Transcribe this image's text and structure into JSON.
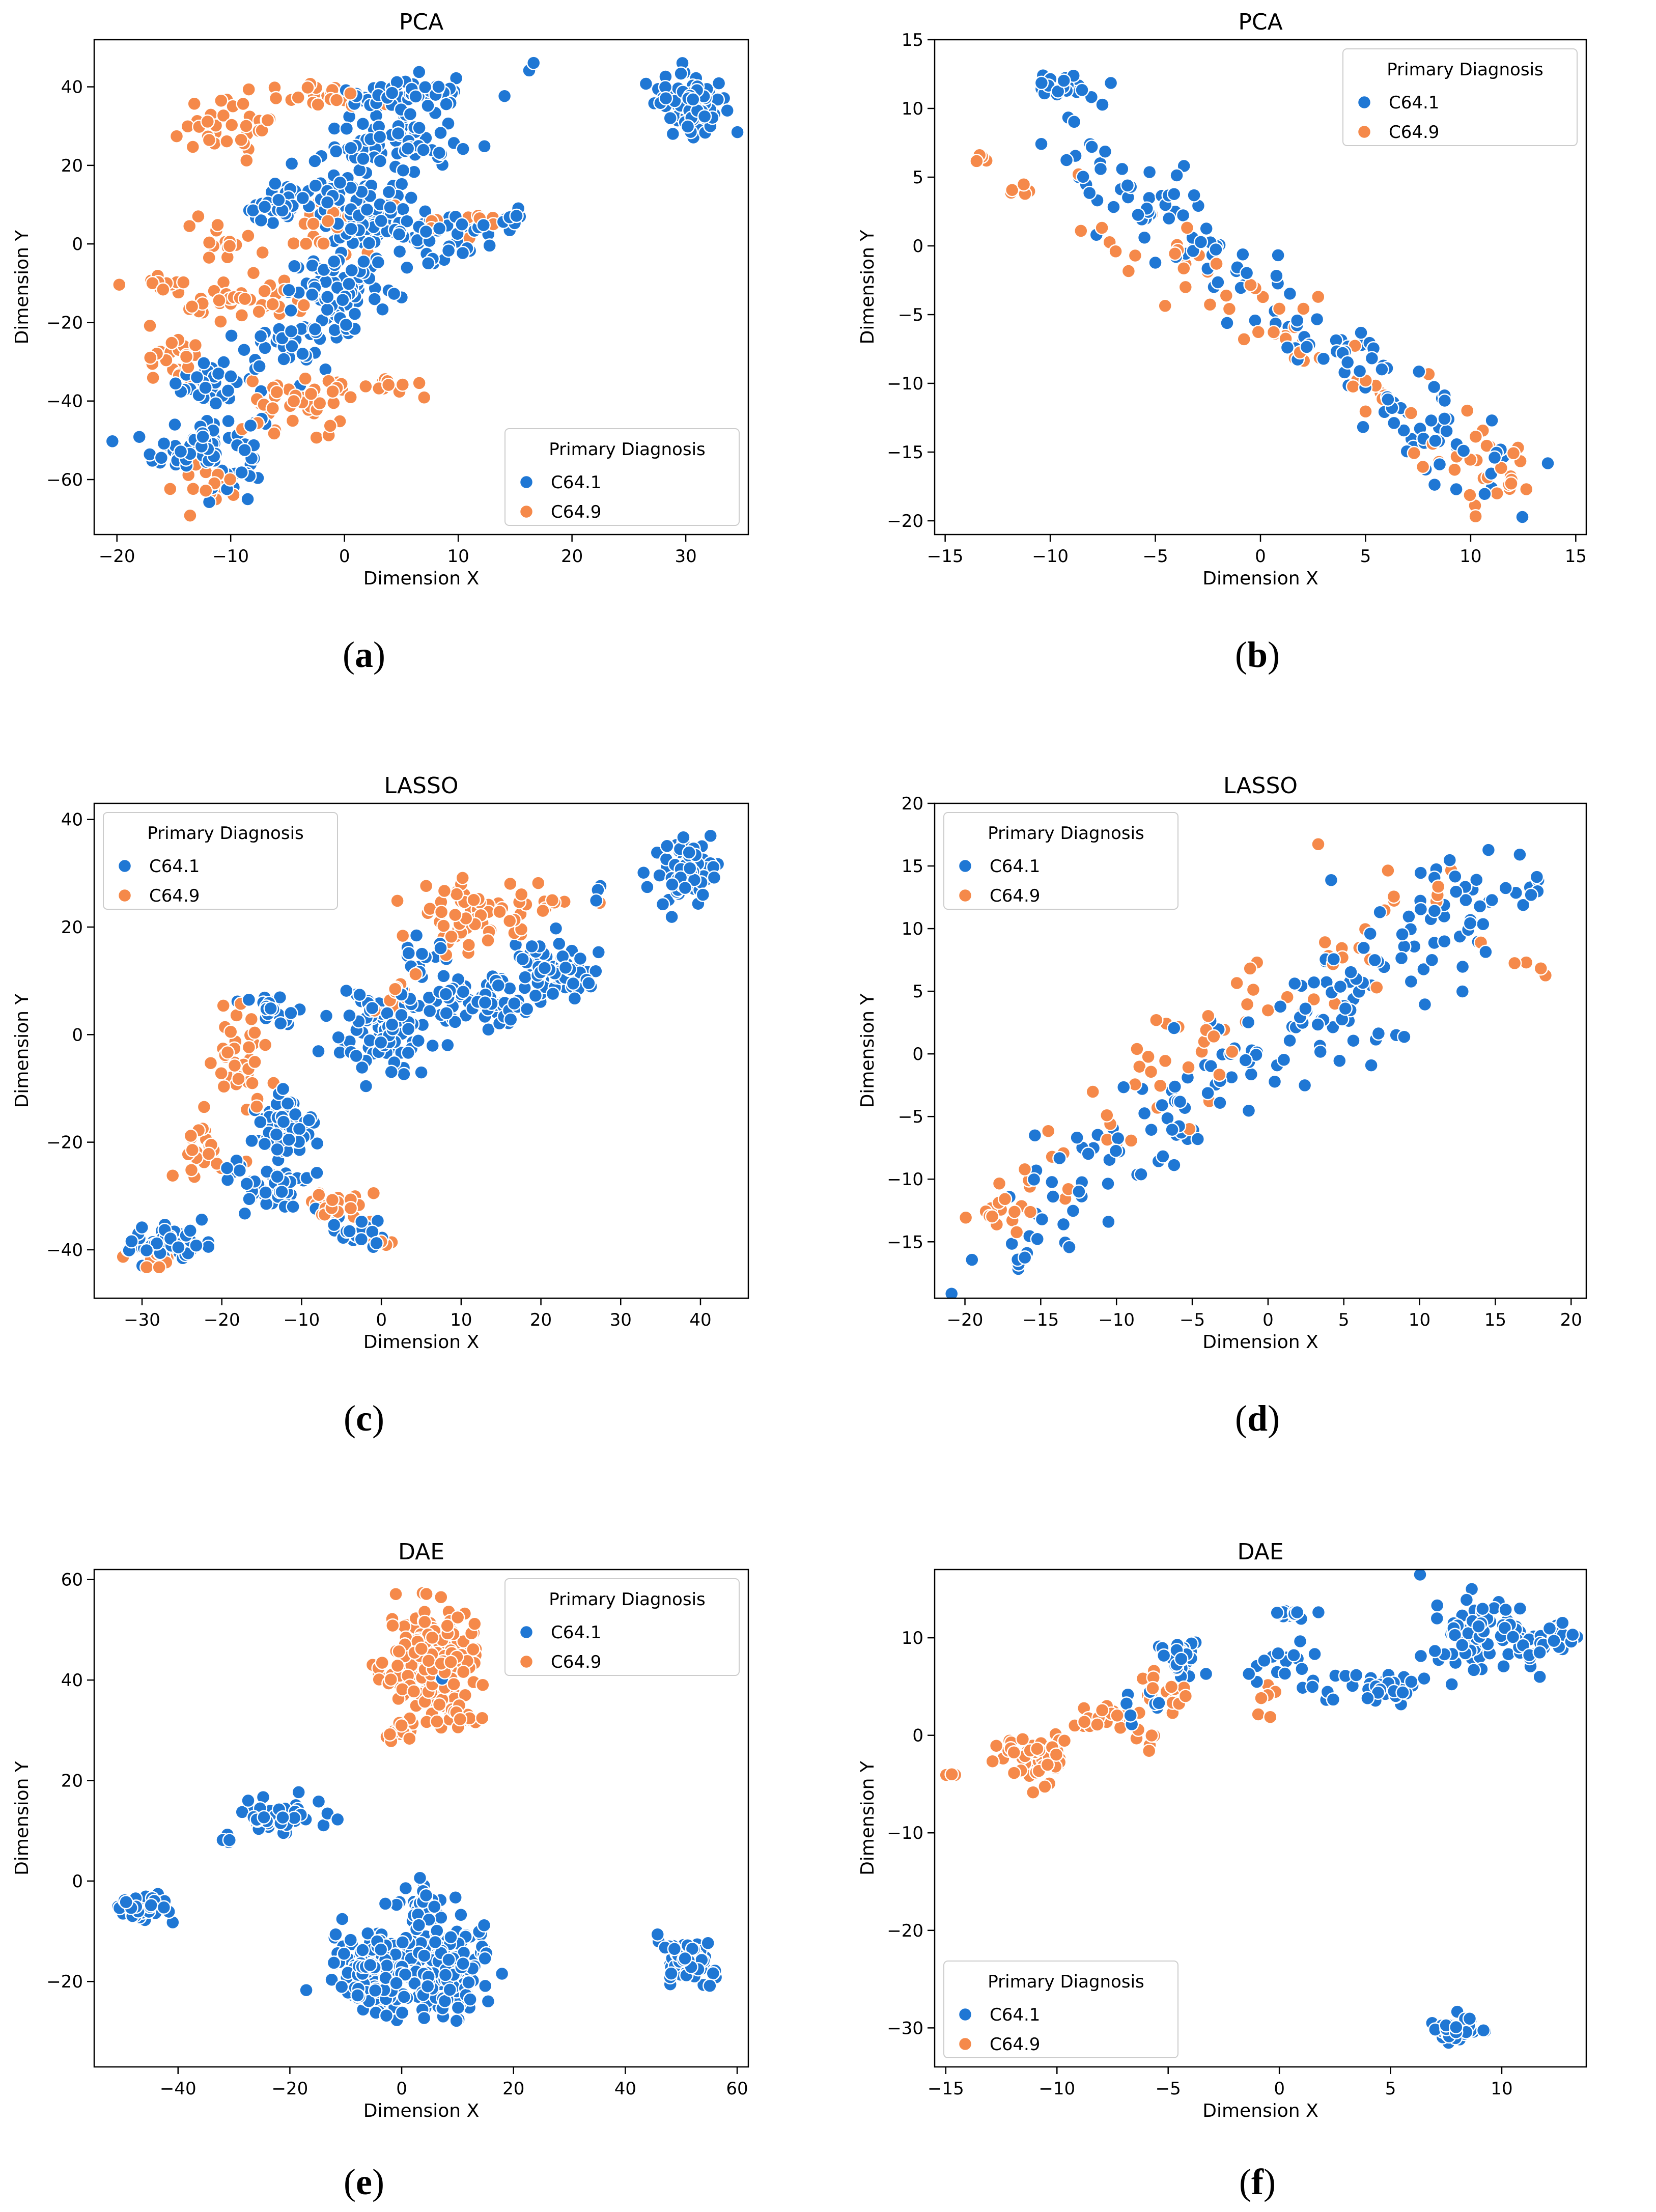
{
  "colors": {
    "C64.1": "#1f77d4",
    "C64.9": "#f5894a"
  },
  "captions": [
    "a",
    "b",
    "c",
    "d",
    "e",
    "f"
  ],
  "chart_data": [
    {
      "panel": "a",
      "type": "scatter",
      "title": "PCA",
      "xlabel": "Dimension X",
      "ylabel": "Dimension Y",
      "xlim": [
        -22,
        35.5
      ],
      "ylim": [
        -74,
        52
      ],
      "xticks": [
        -20,
        -10,
        0,
        10,
        20,
        30
      ],
      "yticks": [
        -60,
        -40,
        -20,
        0,
        20,
        40
      ],
      "legend": {
        "title": "Primary Diagnosis",
        "labels": [
          "C64.1",
          "C64.9"
        ],
        "loc": "lower-right"
      },
      "series": [
        {
          "name": "C64.1",
          "clusters": [
            [
              -12,
              -52,
              4,
              8,
              80
            ],
            [
              -12,
              -35,
              3,
              5,
              30
            ],
            [
              -5,
              -25,
              4,
              6,
              40
            ],
            [
              0,
              -12,
              4,
              7,
              70
            ],
            [
              2,
              8,
              4,
              8,
              120
            ],
            [
              4,
              25,
              5,
              6,
              60
            ],
            [
              6,
              38,
              5,
              4,
              50
            ],
            [
              -6,
              10,
              3,
              6,
              35
            ],
            [
              13,
              6,
              3,
              3,
              20
            ],
            [
              30.5,
              36,
              2.3,
              6,
              110
            ],
            [
              8,
              0,
              3,
              6,
              25
            ],
            [
              16.5,
              45,
              0.5,
              1.5,
              3
            ]
          ]
        },
        {
          "name": "C64.9",
          "clusters": [
            [
              -10,
              30,
              5,
              7,
              35
            ],
            [
              -2,
              38,
              5,
              3,
              25
            ],
            [
              -8,
              -15,
              5,
              4,
              40
            ],
            [
              -15,
              -30,
              2,
              7,
              25
            ],
            [
              -4,
              -42,
              4,
              7,
              40
            ],
            [
              -16,
              -10,
              2,
              2,
              12
            ],
            [
              -2,
              5,
              3,
              6,
              22
            ],
            [
              12,
              5,
              4,
              3,
              15
            ],
            [
              -12,
              -62,
              2,
              4,
              15
            ],
            [
              3,
              -36,
              4,
              3,
              15
            ],
            [
              -10,
              0,
              3,
              4,
              15
            ]
          ]
        }
      ]
    },
    {
      "panel": "b",
      "type": "scatter",
      "title": "PCA",
      "xlabel": "Dimension X",
      "ylabel": "Dimension Y",
      "xlim": [
        -15.5,
        15.5
      ],
      "ylim": [
        -21,
        15
      ],
      "xticks": [
        -15,
        -10,
        -5,
        0,
        5,
        10,
        15
      ],
      "yticks": [
        -20,
        -15,
        -10,
        -5,
        0,
        5,
        10,
        15
      ],
      "legend": {
        "title": "Primary Diagnosis",
        "labels": [
          "C64.1",
          "C64.9"
        ],
        "loc": "top-right"
      },
      "series": [
        {
          "name": "C64.1",
          "trend": {
            "from": [
              -10,
              8
            ],
            "to": [
              12,
              -17
            ],
            "spread": 1.6,
            "n": 150
          },
          "clusters": [
            [
              -9,
              11.5,
              1.5,
              1,
              22
            ]
          ]
        },
        {
          "name": "C64.9",
          "trend": {
            "from": [
              -8,
              3
            ],
            "to": [
              12,
              -17
            ],
            "spread": 1.8,
            "n": 70
          },
          "clusters": [
            [
              -13.5,
              6.5,
              0.6,
              0.3,
              4
            ],
            [
              -11.5,
              4,
              0.5,
              0.7,
              5
            ],
            [
              11.5,
              -16.5,
              1.2,
              2,
              14
            ]
          ]
        }
      ]
    },
    {
      "panel": "c",
      "type": "scatter",
      "title": "LASSO",
      "xlabel": "Dimension X",
      "ylabel": "Dimension Y",
      "xlim": [
        -36,
        46
      ],
      "ylim": [
        -49,
        43
      ],
      "xticks": [
        -30,
        -20,
        -10,
        0,
        10,
        20,
        30,
        40
      ],
      "yticks": [
        -40,
        -20,
        0,
        20,
        40
      ],
      "legend": {
        "title": "Primary Diagnosis",
        "labels": [
          "C64.1",
          "C64.9"
        ],
        "loc": "top-left"
      },
      "series": [
        {
          "name": "C64.1",
          "clusters": [
            [
              -27,
              -39,
              4,
              3,
              80
            ],
            [
              -12,
              -18,
              3,
              5,
              70
            ],
            [
              -14,
              -28,
              5,
              4,
              50
            ],
            [
              0,
              0,
              5,
              7,
              80
            ],
            [
              12,
              6,
              6,
              4,
              80
            ],
            [
              22,
              12,
              4,
              4,
              80
            ],
            [
              38,
              30,
              3,
              5,
              90
            ],
            [
              -3,
              -37,
              3,
              2,
              25
            ],
            [
              -14,
              5,
              3,
              3,
              20
            ],
            [
              5,
              15,
              3,
              3,
              15
            ],
            [
              27,
              27,
              1,
              1,
              3
            ]
          ]
        },
        {
          "name": "C64.9",
          "clusters": [
            [
              -18,
              -5,
              3,
              8,
              40
            ],
            [
              10,
              22,
              6,
              5,
              60
            ],
            [
              -22,
              -22,
              3,
              4,
              25
            ],
            [
              -5,
              -32,
              3,
              3,
              25
            ],
            [
              -28,
              -42,
              3,
              2,
              15
            ],
            [
              3,
              7,
              3,
              3,
              12
            ],
            [
              20,
              25,
              3,
              2,
              12
            ],
            [
              0,
              -39,
              1.5,
              0.8,
              5
            ]
          ]
        }
      ]
    },
    {
      "panel": "d",
      "type": "scatter",
      "title": "LASSO",
      "xlabel": "Dimension X",
      "ylabel": "Dimension Y",
      "xlim": [
        -22,
        21
      ],
      "ylim": [
        -19.5,
        20
      ],
      "xticks": [
        -20,
        -15,
        -10,
        -5,
        0,
        5,
        10,
        15,
        20
      ],
      "yticks": [
        -15,
        -10,
        -5,
        0,
        5,
        10,
        15,
        20
      ],
      "legend": {
        "title": "Primary Diagnosis",
        "labels": [
          "C64.1",
          "C64.9"
        ],
        "loc": "top-left"
      },
      "series": [
        {
          "name": "C64.1",
          "trend": {
            "from": [
              -18,
              -15
            ],
            "to": [
              17,
              14
            ],
            "spread": 2.4,
            "n": 190
          },
          "clusters": []
        },
        {
          "name": "C64.9",
          "trend": {
            "from": [
              -18,
              -12
            ],
            "to": [
              12,
              14
            ],
            "spread": 2.6,
            "n": 70
          },
          "clusters": [
            [
              -17.5,
              -13,
              1.3,
              2,
              14
            ],
            [
              17,
              7,
              2,
              2,
              5
            ]
          ]
        }
      ]
    },
    {
      "panel": "e",
      "type": "scatter",
      "title": "DAE",
      "xlabel": "Dimension X",
      "ylabel": "Dimension Y",
      "xlim": [
        -55,
        62
      ],
      "ylim": [
        -37,
        62
      ],
      "xticks": [
        -40,
        -20,
        0,
        20,
        40,
        60
      ],
      "yticks": [
        -20,
        0,
        20,
        40,
        60
      ],
      "legend": {
        "title": "Primary Diagnosis",
        "labels": [
          "C64.1",
          "C64.9"
        ],
        "loc": "top-right"
      },
      "series": [
        {
          "name": "C64.1",
          "clusters": [
            [
              -46,
              -5,
              3.5,
              2.5,
              45
            ],
            [
              -22,
              13,
              6,
              3,
              45
            ],
            [
              -31,
              8.5,
              1,
              0.8,
              4
            ],
            [
              -5,
              -18,
              7,
              7,
              210
            ],
            [
              8,
              -18,
              6,
              7,
              170
            ],
            [
              4,
              -5,
              4,
              4,
              40
            ],
            [
              51,
              -16,
              3.5,
              3.5,
              90
            ],
            [
              7,
              40,
              0.5,
              0.5,
              1
            ]
          ]
        },
        {
          "name": "C64.9",
          "clusters": [
            [
              5,
              44,
              6,
              9,
              230
            ],
            [
              10,
              33,
              3,
              2,
              20
            ],
            [
              0,
              30,
              2.5,
              2,
              15
            ]
          ]
        }
      ]
    },
    {
      "panel": "f",
      "type": "scatter",
      "title": "DAE",
      "xlabel": "Dimension X",
      "ylabel": "Dimension Y",
      "xlim": [
        -15.5,
        13.8
      ],
      "ylim": [
        -34,
        17
      ],
      "xticks": [
        -15,
        -10,
        -5,
        0,
        5,
        10
      ],
      "yticks": [
        -30,
        -20,
        -10,
        0,
        10
      ],
      "legend": {
        "title": "Primary Diagnosis",
        "labels": [
          "C64.1",
          "C64.9"
        ],
        "loc": "bottom-left"
      },
      "series": [
        {
          "name": "C64.1",
          "clusters": [
            [
              -4.5,
              8,
              0.8,
              1.5,
              30
            ],
            [
              0.5,
              12.5,
              1,
              0.4,
              12
            ],
            [
              4,
              5,
              2.5,
              1.5,
              40
            ],
            [
              9,
              10,
              2,
              3,
              80
            ],
            [
              12,
              10,
              1,
              1.5,
              20
            ],
            [
              8,
              -30,
              1,
              1,
              50
            ],
            [
              0,
              8,
              1.5,
              2,
              15
            ],
            [
              -6,
              3,
              1,
              2,
              10
            ]
          ]
        },
        {
          "name": "C64.9",
          "clusters": [
            [
              -11,
              -2,
              1.3,
              1.8,
              55
            ],
            [
              -8,
              2,
              1.5,
              1.5,
              18
            ],
            [
              -5,
              5,
              1,
              2.5,
              16
            ],
            [
              -14.5,
              -4,
              0.3,
              0.2,
              3
            ],
            [
              -1,
              3.5,
              0.8,
              1.5,
              6
            ],
            [
              -6,
              0,
              0.6,
              1.2,
              6
            ]
          ]
        }
      ]
    }
  ]
}
